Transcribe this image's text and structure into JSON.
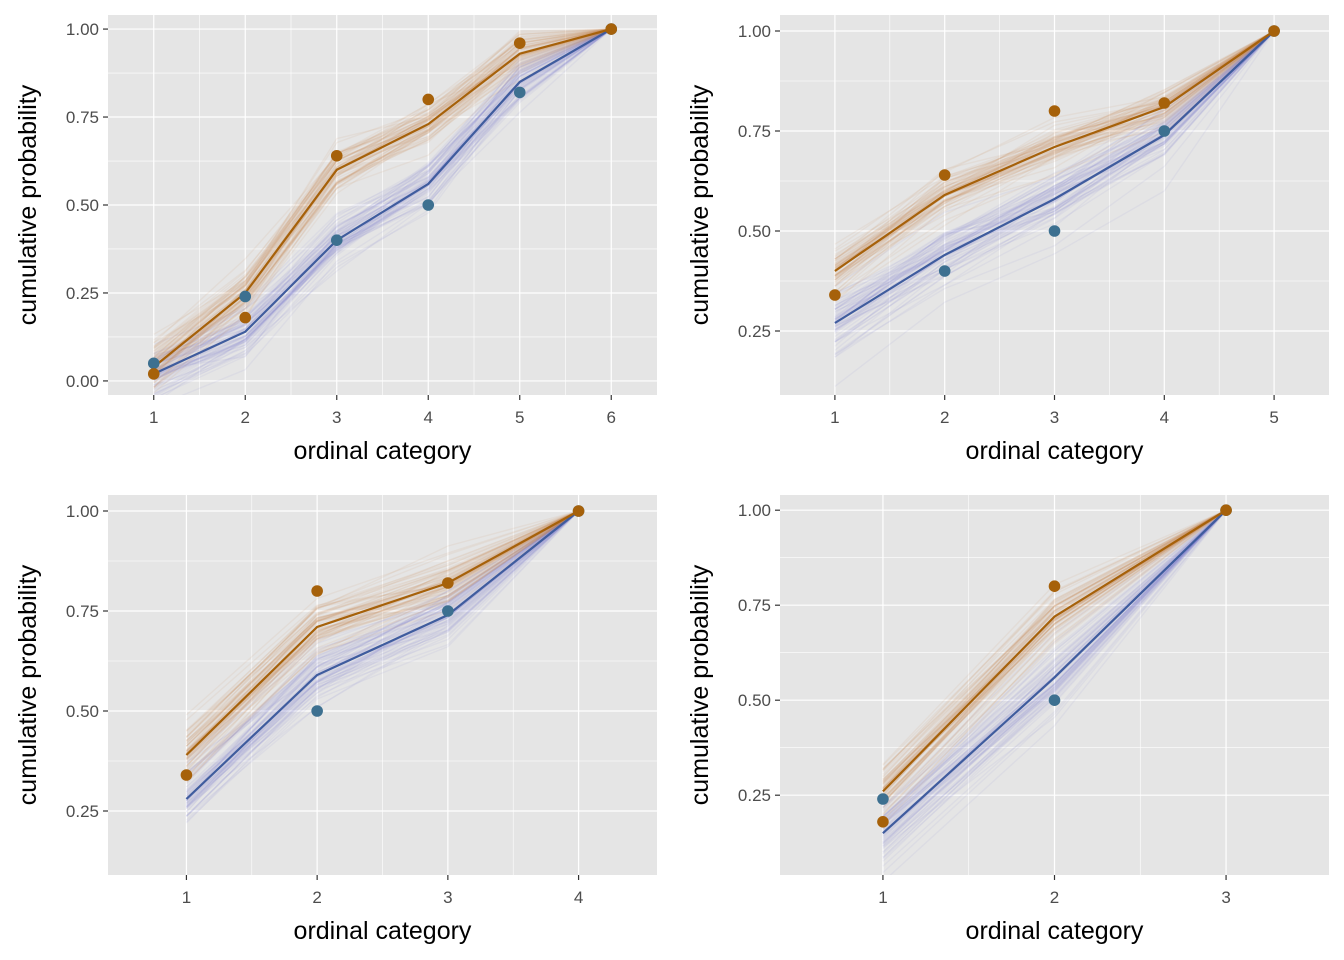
{
  "colors": {
    "panel_background": "#e5e5e5",
    "grid": "#ffffff",
    "group_a": "#a6610a",
    "group_b": "#3f5c9e",
    "group_b_points": "#3d7090",
    "draws_a": "#c98a4f",
    "draws_b": "#8a8ad0"
  },
  "chart_data": [
    {
      "type": "line",
      "xlabel": "ordinal category",
      "ylabel": "cumulative probability",
      "x": [
        1,
        2,
        3,
        4,
        5,
        6
      ],
      "xlim": [
        0.5,
        6.5
      ],
      "ylim": [
        -0.04,
        1.04
      ],
      "yticks": [
        0.0,
        0.25,
        0.5,
        0.75,
        1.0
      ],
      "ytick_labels": [
        "0.00",
        "0.25",
        "0.50",
        "0.75",
        "1.00"
      ],
      "xtick_labels": [
        "1",
        "2",
        "3",
        "4",
        "5",
        "6"
      ],
      "grid": true,
      "series": [
        {
          "color_key": "group_b",
          "point_color_key": "group_b_points",
          "draw_color_key": "draws_b",
          "line": [
            0.02,
            0.14,
            0.4,
            0.56,
            0.85,
            1.0
          ],
          "points": [
            0.05,
            0.24,
            0.4,
            0.5,
            0.82,
            1.0
          ]
        },
        {
          "color_key": "group_a",
          "point_color_key": "group_a",
          "draw_color_key": "draws_a",
          "line": [
            0.04,
            0.25,
            0.6,
            0.73,
            0.93,
            1.0
          ],
          "points": [
            0.02,
            0.18,
            0.64,
            0.8,
            0.96,
            1.0
          ]
        }
      ]
    },
    {
      "type": "line",
      "xlabel": "ordinal category",
      "ylabel": "cumulative probability",
      "x": [
        1,
        2,
        3,
        4,
        5
      ],
      "xlim": [
        0.5,
        5.5
      ],
      "ylim": [
        0.09,
        1.04
      ],
      "yticks": [
        0.25,
        0.5,
        0.75,
        1.0
      ],
      "ytick_labels": [
        "0.25",
        "0.50",
        "0.75",
        "1.00"
      ],
      "xtick_labels": [
        "1",
        "2",
        "3",
        "4",
        "5"
      ],
      "grid": true,
      "series": [
        {
          "color_key": "group_b",
          "point_color_key": "group_b_points",
          "draw_color_key": "draws_b",
          "line": [
            0.27,
            0.44,
            0.58,
            0.74,
            1.0
          ],
          "points": [
            null,
            0.4,
            0.5,
            0.75,
            1.0
          ]
        },
        {
          "color_key": "group_a",
          "point_color_key": "group_a",
          "draw_color_key": "draws_a",
          "line": [
            0.4,
            0.59,
            0.71,
            0.81,
            1.0
          ],
          "points": [
            0.34,
            0.64,
            0.8,
            0.82,
            1.0
          ]
        }
      ]
    },
    {
      "type": "line",
      "xlabel": "ordinal category",
      "ylabel": "cumulative probability",
      "x": [
        1,
        2,
        3,
        4
      ],
      "xlim": [
        0.4,
        4.6
      ],
      "ylim": [
        0.09,
        1.04
      ],
      "yticks": [
        0.25,
        0.5,
        0.75,
        1.0
      ],
      "ytick_labels": [
        "0.25",
        "0.50",
        "0.75",
        "1.00"
      ],
      "xtick_labels": [
        "1",
        "2",
        "3",
        "4"
      ],
      "grid": true,
      "series": [
        {
          "color_key": "group_b",
          "point_color_key": "group_b_points",
          "draw_color_key": "draws_b",
          "line": [
            0.28,
            0.59,
            0.74,
            1.0
          ],
          "points": [
            null,
            0.5,
            0.75,
            1.0
          ]
        },
        {
          "color_key": "group_a",
          "point_color_key": "group_a",
          "draw_color_key": "draws_a",
          "line": [
            0.39,
            0.71,
            0.82,
            1.0
          ],
          "points": [
            0.34,
            0.8,
            0.82,
            1.0
          ]
        }
      ]
    },
    {
      "type": "line",
      "xlabel": "ordinal category",
      "ylabel": "cumulative probability",
      "x": [
        1,
        2,
        3
      ],
      "xlim": [
        0.4,
        3.6
      ],
      "ylim": [
        0.04,
        1.04
      ],
      "yticks": [
        0.25,
        0.5,
        0.75,
        1.0
      ],
      "ytick_labels": [
        "0.25",
        "0.50",
        "0.75",
        "1.00"
      ],
      "xtick_labels": [
        "1",
        "2",
        "3"
      ],
      "grid": true,
      "series": [
        {
          "color_key": "group_b",
          "point_color_key": "group_b_points",
          "draw_color_key": "draws_b",
          "line": [
            0.15,
            0.56,
            1.0
          ],
          "points": [
            0.24,
            0.5,
            1.0
          ]
        },
        {
          "color_key": "group_a",
          "point_color_key": "group_a",
          "draw_color_key": "draws_a",
          "line": [
            0.26,
            0.72,
            1.0
          ],
          "points": [
            0.18,
            0.8,
            1.0
          ]
        }
      ]
    }
  ]
}
